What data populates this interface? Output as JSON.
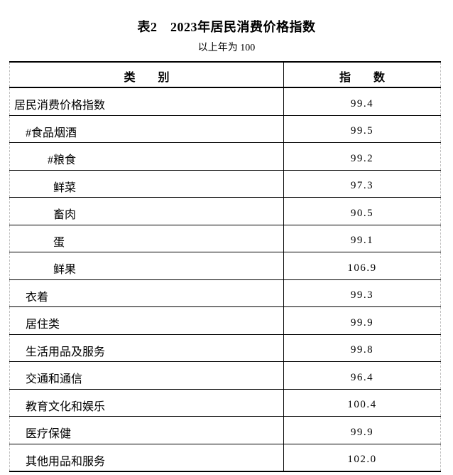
{
  "page": {
    "title": "表2　2023年居民消费价格指数",
    "subtitle": "以上年为 100"
  },
  "table": {
    "headers": {
      "category": "类　　别",
      "index": "指　　数"
    },
    "base_note": "100",
    "rows": [
      {
        "category": "居民消费价格指数",
        "index": "99.4",
        "level": 0
      },
      {
        "category": "#食品烟酒",
        "index": "99.5",
        "level": 1
      },
      {
        "category": "#粮食",
        "index": "99.2",
        "level": 2
      },
      {
        "category": "鲜菜",
        "index": "97.3",
        "level": 2
      },
      {
        "category": "畜肉",
        "index": "90.5",
        "level": 2
      },
      {
        "category": "蛋",
        "index": "99.1",
        "level": 2
      },
      {
        "category": "鲜果",
        "index": "106.9",
        "level": 2
      },
      {
        "category": "衣着",
        "index": "99.3",
        "level": 1
      },
      {
        "category": "居住类",
        "index": "99.9",
        "level": 1
      },
      {
        "category": "生活用品及服务",
        "index": "99.8",
        "level": 1
      },
      {
        "category": "交通和通信",
        "index": "96.4",
        "level": 1
      },
      {
        "category": "教育文化和娱乐",
        "index": "100.4",
        "level": 1
      },
      {
        "category": "医疗保健",
        "index": "99.9",
        "level": 1
      },
      {
        "category": "其他用品和服务",
        "index": "102.0",
        "level": 1
      }
    ]
  }
}
